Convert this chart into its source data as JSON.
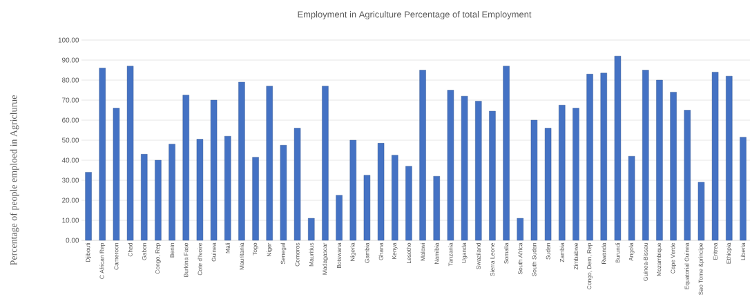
{
  "chart_data": {
    "type": "bar",
    "title": "Employment in Agriculture Percentage of total Employment",
    "ylabel": "Percentage of people emploed in Agriclurue",
    "categories": [
      "Djibouti",
      "C African Rep",
      "Cameroon",
      "Chad",
      "Gabon",
      "Congo, Rep",
      "Benin",
      "Burkina Faso",
      "Cote d'Ivoire",
      "Guinea",
      "Mali",
      "Mauritania",
      "Togo",
      "Niger",
      "Senegal",
      "Comoros",
      "Mauritius",
      "Madagascar",
      "Botswana",
      "Nigeria",
      "Gambia",
      "Ghana",
      "Kenya",
      "Lesotho",
      "Malawi",
      "Namibia",
      "Tanzania",
      "Uganda",
      "Swaziland",
      "Sierra Leone",
      "Somalia",
      "South Africa",
      "South Sudan",
      "Sudan",
      "Zambia",
      "Zimbabwe",
      "Congo, Dem, Rep",
      "Rwanda",
      "Burundi",
      "Angola",
      "Guinea-Bissau",
      "Mozambique",
      "Cape Verde",
      "Equatorial Guinea",
      "Sao Tome &principe",
      "Eritrea",
      "Ethiopia",
      "Liberia"
    ],
    "values": [
      34,
      86,
      66,
      87,
      43,
      40,
      48,
      72.5,
      50.5,
      70,
      52,
      79,
      41.5,
      77,
      47.5,
      56,
      11,
      77,
      22.5,
      50,
      32.5,
      48.5,
      42.5,
      37,
      85,
      32,
      75,
      72,
      69.5,
      64.5,
      87,
      11,
      60,
      56,
      67.5,
      66,
      83,
      83.5,
      92,
      42,
      85,
      80,
      74,
      65,
      29,
      84,
      82,
      51.5
    ],
    "color": "#4472c4",
    "ylim": [
      0,
      100
    ],
    "yticks": [
      {
        "value": 0,
        "label": "0.00"
      },
      {
        "value": 10,
        "label": "10.00"
      },
      {
        "value": 20,
        "label": "20.00"
      },
      {
        "value": 30,
        "label": "30.00"
      },
      {
        "value": 40,
        "label": "40.00"
      },
      {
        "value": 50,
        "label": "50.00"
      },
      {
        "value": 60,
        "label": "60.00"
      },
      {
        "value": 70,
        "label": "70.00"
      },
      {
        "value": 80,
        "label": "80.00"
      },
      {
        "value": 90,
        "label": "90.00"
      },
      {
        "value": 100,
        "label": "100.00"
      }
    ],
    "grid": "y"
  }
}
